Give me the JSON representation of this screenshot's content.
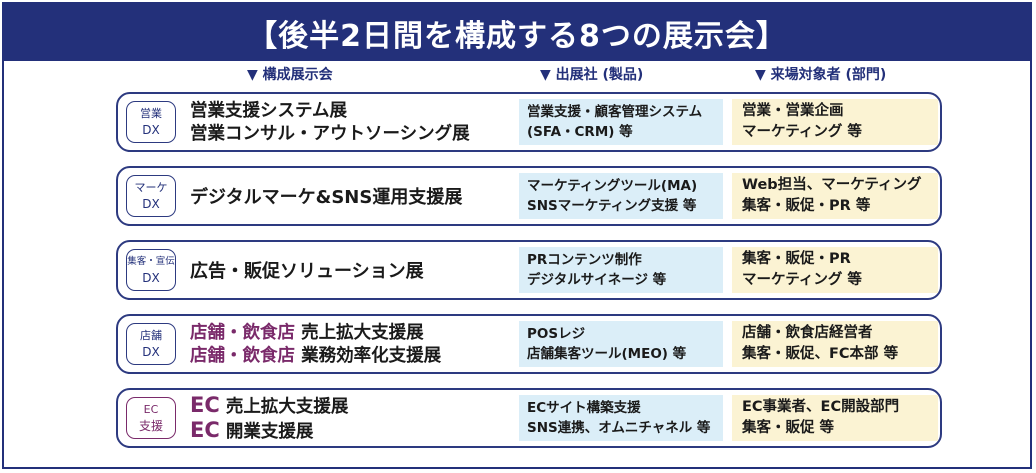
{
  "banner": {
    "title": "【後半2日間を構成する8つの展示会】"
  },
  "headers": {
    "exhibitions": "▼ 構成展示会",
    "exhibitors": "▼ 出展社 (製品)",
    "visitors": "▼ 来場対象者 (部門)"
  },
  "rows": [
    {
      "tag": [
        "営業",
        "DX"
      ],
      "title_lines": [
        [
          "",
          "営業支援システム展"
        ],
        [
          "",
          "営業コンサル・アウトソーシング展"
        ]
      ],
      "exhibitors": [
        "営業支援・顧客管理システム",
        "(SFA・CRM)  等"
      ],
      "visitors": [
        "営業・営業企画",
        "マーケティング  等"
      ]
    },
    {
      "tag": [
        "マーケ",
        "DX"
      ],
      "title_lines": [
        [
          "",
          "デジタルマーケ&SNS運用支援展"
        ]
      ],
      "exhibitors": [
        "マーケティングツール(MA)",
        "SNSマーケティング支援  等"
      ],
      "visitors": [
        "Web担当、マーケティング",
        "集客・販促・PR  等"
      ]
    },
    {
      "tag": [
        "集客・宣伝",
        "DX"
      ],
      "title_lines": [
        [
          "",
          "広告・販促ソリューション展"
        ]
      ],
      "exhibitors": [
        "PRコンテンツ制作",
        "デジタルサイネージ  等"
      ],
      "visitors": [
        "集客・販促・PR",
        "マーケティング  等"
      ]
    },
    {
      "tag": [
        "店舗",
        "DX"
      ],
      "title_lines": [
        [
          "店舗・飲食店",
          " 売上拡大支援展"
        ],
        [
          "店舗・飲食店",
          " 業務効率化支援展"
        ]
      ],
      "exhibitors": [
        "POSレジ",
        "店舗集客ツール(MEO)  等"
      ],
      "visitors": [
        "店舗・飲食店経営者",
        "集客・販促、FC本部  等"
      ]
    },
    {
      "tag": [
        "EC",
        "支援"
      ],
      "title_lines": [
        [
          "EC",
          " 売上拡大支援展"
        ],
        [
          "EC",
          " 開業支援展"
        ]
      ],
      "exhibitors": [
        "ECサイト構築支援",
        "SNS連携、オムニチャネル  等"
      ],
      "visitors": [
        "EC事業者、EC開設部門",
        "集客・販促  等"
      ]
    }
  ],
  "colors": {
    "navy": "#23307a",
    "purple": "#7a2a6a",
    "exhibitor_bg": "#dbeef8",
    "visitor_bg": "#fbf3d3"
  }
}
